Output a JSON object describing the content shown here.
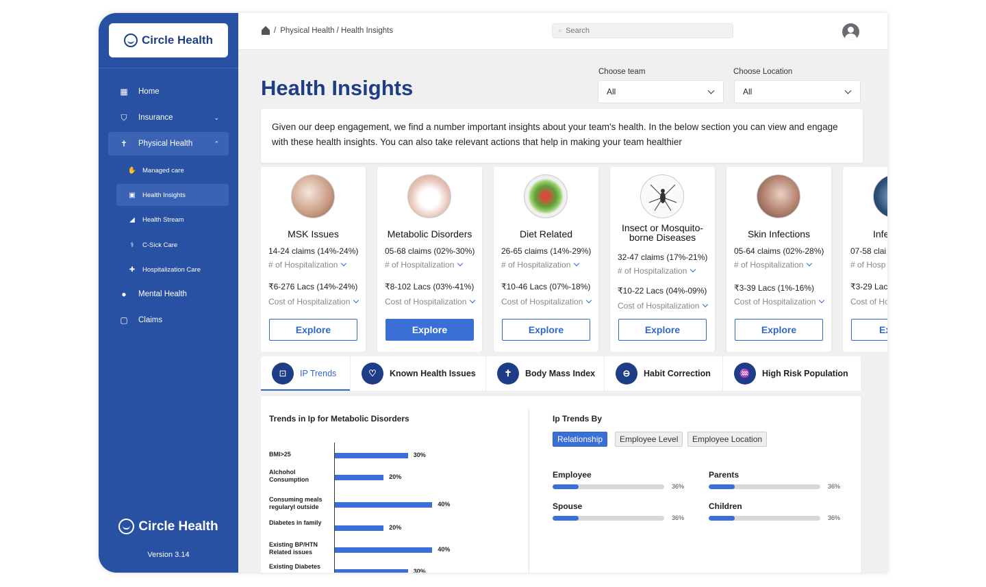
{
  "brand": {
    "name": "Circle Health",
    "version": "Version 3.14"
  },
  "sidebar": {
    "items": [
      {
        "label": "Home",
        "icon": "dashboard-icon"
      },
      {
        "label": "Insurance",
        "icon": "shield-icon"
      },
      {
        "label": "Physical Health",
        "icon": "person-icon"
      },
      {
        "label": "Managed care",
        "icon": "hand-icon"
      },
      {
        "label": "Health Insights",
        "icon": "insights-icon"
      },
      {
        "label": "Health Stream",
        "icon": "stream-icon"
      },
      {
        "label": "C-Sick Care",
        "icon": "care-icon"
      },
      {
        "label": "Hospitalization Care",
        "icon": "hospital-icon"
      },
      {
        "label": "Mental Health",
        "icon": "brain-icon"
      },
      {
        "label": "Claims",
        "icon": "calendar-icon"
      }
    ]
  },
  "header": {
    "breadcrumb_root": "/",
    "breadcrumb": "Physical Health / Health Insights",
    "search_placeholder": "Search"
  },
  "page": {
    "title": "Health Insights",
    "team_label": "Choose team",
    "team_value": "All",
    "location_label": "Choose Location",
    "location_value": "All",
    "intro": "Given our deep engagement, we find a number important insights about your team's health. In the below section you can view and engage with these health insights. You can also take relevant actions that help in making your team healthier"
  },
  "cards": [
    {
      "title": "MSK Issues",
      "claims": "14-24 claims (14%-24%)",
      "hosp_label": "# of Hospitalization",
      "cost": "₹6-276 Lacs (14%-24%)",
      "cost_label": "Cost of Hospitalization",
      "button": "Explore"
    },
    {
      "title": "Metabolic Disorders",
      "claims": "05-68 claims (02%-30%)",
      "hosp_label": "# of Hospitalization",
      "cost": "₹8-102 Lacs (03%-41%)",
      "cost_label": "Cost of Hospitalization",
      "button": "Explore"
    },
    {
      "title": "Diet Related",
      "claims": "26-65 claims (14%-29%)",
      "hosp_label": "# of Hospitalization",
      "cost": "₹10-46 Lacs (07%-18%)",
      "cost_label": "Cost of Hospitalization",
      "button": "Explore"
    },
    {
      "title": "Insect or Mosquito-borne Diseases",
      "claims": "32-47 claims (17%-21%)",
      "hosp_label": "# of Hospitalization",
      "cost": "₹10-22 Lacs (04%-09%)",
      "cost_label": "Cost of Hospitalization",
      "button": "Explore"
    },
    {
      "title": "Skin Infections",
      "claims": "05-64 claims (02%-28%)",
      "hosp_label": "# of Hospitalization",
      "cost": "₹3-39 Lacs (1%-16%)",
      "cost_label": "Cost of Hospitalization",
      "button": "Explore"
    },
    {
      "title": "Infe",
      "claims": "07-58 clai",
      "hosp_label": "# of Hosp",
      "cost": "₹3-29 Lac",
      "cost_label": "Cost of Ho",
      "button": "Ex"
    }
  ],
  "tabs": [
    {
      "label": "IP Trends",
      "icon": "trend-icon"
    },
    {
      "label": "Known Health Issues",
      "icon": "heart-icon"
    },
    {
      "label": "Body Mass Index",
      "icon": "person-icon"
    },
    {
      "label": "Habit Correction",
      "icon": "habit-icon"
    },
    {
      "label": "High Risk Population",
      "icon": "risk-icon"
    }
  ],
  "chart_data": {
    "type": "bar",
    "title": "Trends in Ip for Metabolic Disorders",
    "orientation": "horizontal",
    "categories": [
      "BMI>25",
      "Alchohol Consumption",
      "Consuming meals regularyl outside",
      "Diabetes in family",
      "Existing BP/HTN Related issues",
      "Existing Diabetes"
    ],
    "values": [
      30,
      20,
      40,
      20,
      40,
      30
    ],
    "value_labels": [
      "30%",
      "20%",
      "40%",
      "20%",
      "40%",
      "30%"
    ],
    "unit": "%"
  },
  "ip_trends": {
    "title": "Ip Trends By",
    "filters": [
      "Relationship",
      "Employee Level",
      "Employee Location"
    ],
    "rows": [
      {
        "label": "Employee",
        "value": 36,
        "display": "36%"
      },
      {
        "label": "Parents",
        "value": 36,
        "display": "36%"
      },
      {
        "label": "Spouse",
        "value": 36,
        "display": "36%"
      },
      {
        "label": "Children",
        "value": 36,
        "display": "36%"
      }
    ]
  },
  "colors": {
    "sidebar": "#2851a3",
    "accent": "#3a6fd8",
    "title": "#1d3d86"
  }
}
